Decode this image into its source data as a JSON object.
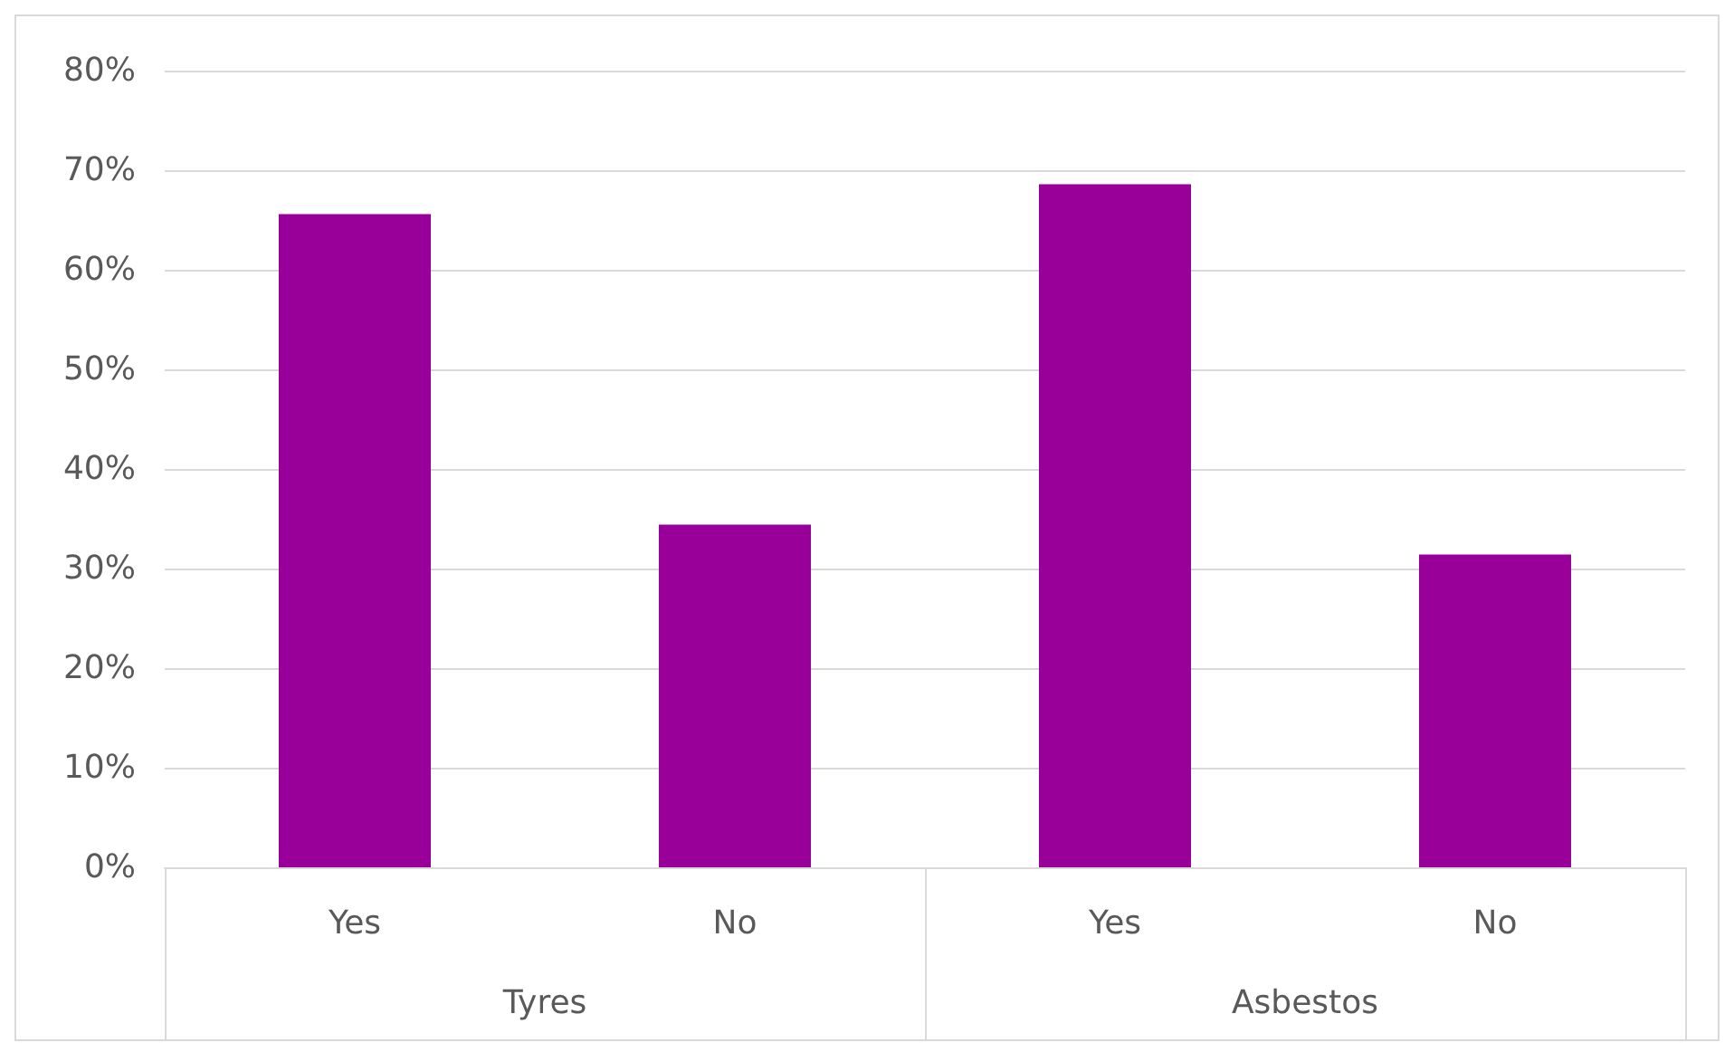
{
  "chart_data": {
    "type": "bar",
    "categories": [
      "Yes",
      "No",
      "Yes",
      "No"
    ],
    "values": [
      65.6,
      34.4,
      68.6,
      31.4
    ],
    "color": "#990099",
    "annotations": [
      "Tyres",
      "Asbestos"
    ],
    "ylim": [
      0,
      80
    ],
    "yticks": [
      {
        "value": 0,
        "label": "0%"
      },
      {
        "value": 10,
        "label": "10%"
      },
      {
        "value": 20,
        "label": "20%"
      },
      {
        "value": 30,
        "label": "30%"
      },
      {
        "value": 40,
        "label": "40%"
      },
      {
        "value": 50,
        "label": "50%"
      },
      {
        "value": 60,
        "label": "60%"
      },
      {
        "value": 70,
        "label": "70%"
      },
      {
        "value": 80,
        "label": "80%"
      }
    ],
    "grid": "y"
  }
}
